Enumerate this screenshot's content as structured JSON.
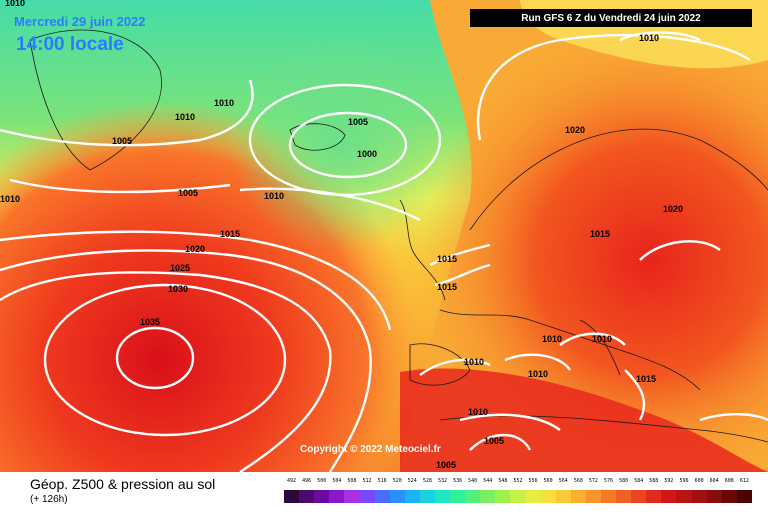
{
  "header": {
    "date": "Mercredi 29 juin 2022",
    "time": "14:00 locale",
    "run": "Run GFS 6 Z du Vendredi 24 juin 2022"
  },
  "map": {
    "copyright": "Copyright © 2022 Meteociel.fr",
    "isobar_labels": [
      "1035",
      "1030",
      "1025",
      "1020",
      "1015",
      "1005",
      "1010",
      "1010",
      "1005",
      "1010",
      "1010",
      "1010",
      "1005",
      "1000",
      "1020",
      "1010",
      "1015",
      "1020",
      "1015",
      "1015",
      "1010",
      "1010",
      "1010",
      "1010",
      "1015",
      "1010",
      "1005",
      "1005"
    ]
  },
  "footer": {
    "title": "Géop. Z500 & pression au sol",
    "lead": "(+ 126h)"
  },
  "scale": {
    "labels": [
      "492",
      "496",
      "500",
      "504",
      "508",
      "512",
      "516",
      "520",
      "524",
      "528",
      "532",
      "536",
      "540",
      "544",
      "548",
      "552",
      "556",
      "560",
      "564",
      "568",
      "572",
      "576",
      "580",
      "584",
      "588",
      "592",
      "596",
      "600",
      "604",
      "608",
      "612"
    ],
    "colors": [
      "#2a0a3a",
      "#4b0a6e",
      "#6a0aa0",
      "#8a18c8",
      "#a830e0",
      "#7a46ff",
      "#4a6cff",
      "#2a90ff",
      "#1ab4f5",
      "#18d2e0",
      "#1ee6c0",
      "#30f09a",
      "#52f07a",
      "#7af060",
      "#9ef050",
      "#c4f04a",
      "#e6ee46",
      "#f7e03e",
      "#fbc836",
      "#fbae30",
      "#f8942c",
      "#f47a28",
      "#f06024",
      "#ea4420",
      "#e02a1c",
      "#d01818",
      "#b81414",
      "#a01010",
      "#880c0c",
      "#6a0808",
      "#4a0404"
    ]
  }
}
